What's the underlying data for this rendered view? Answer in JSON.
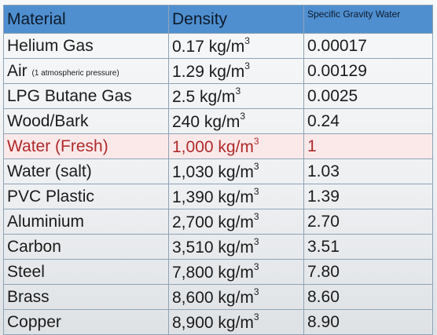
{
  "table": {
    "headers": [
      "Material",
      "Density",
      "Specific Gravity Water"
    ],
    "rows": [
      {
        "material": "Helium Gas",
        "note": "",
        "density": "0.17 kg/m",
        "sg": "0.00017"
      },
      {
        "material": "Air",
        "note": "(1 atmospheric pressure)",
        "density": "1.29 kg/m",
        "sg": "0.00129"
      },
      {
        "material": "LPG Butane Gas",
        "note": "",
        "density": "2.5 kg/m",
        "sg": "0.0025"
      },
      {
        "material": "Wood/Bark",
        "note": "",
        "density": "240 kg/m",
        "sg": "0.24"
      },
      {
        "material": "Water (Fresh)",
        "note": "",
        "density": "1,000 kg/m",
        "sg": "1"
      },
      {
        "material": "Water (salt)",
        "note": "",
        "density": "1,030 kg/m",
        "sg": "1.03"
      },
      {
        "material": "PVC Plastic",
        "note": "",
        "density": "1,390 kg/m",
        "sg": "1.39"
      },
      {
        "material": "Aluminium",
        "note": "",
        "density": "2,700 kg/m",
        "sg": "2.70"
      },
      {
        "material": "Carbon",
        "note": "",
        "density": "3,510 kg/m",
        "sg": "3.51"
      },
      {
        "material": "Steel",
        "note": "",
        "density": "7,800 kg/m",
        "sg": "7.80"
      },
      {
        "material": "Brass",
        "note": "",
        "density": "8,600 kg/m",
        "sg": "8.60"
      },
      {
        "material": "Copper",
        "note": "",
        "density": "8,900 kg/m",
        "sg": "8.90"
      }
    ],
    "exponent": "3",
    "highlight_row": 4,
    "colors": {
      "header": "#4f8fd0",
      "highlight_bg": "#fbe9ea",
      "highlight_text": "#b02a2a"
    }
  }
}
